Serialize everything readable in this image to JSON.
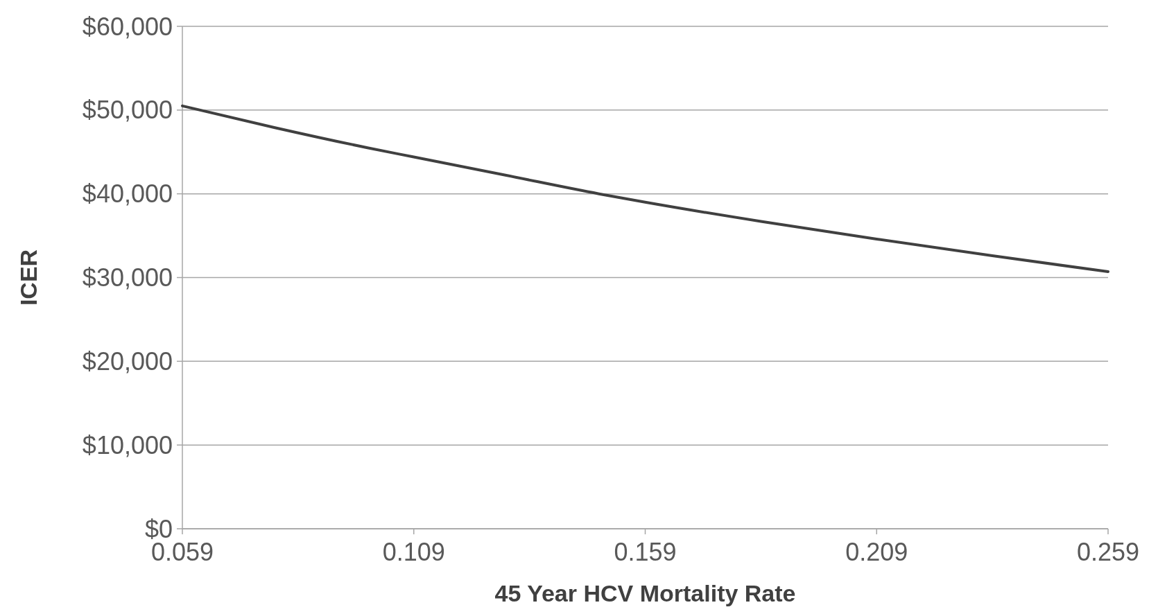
{
  "chart_data": {
    "type": "line",
    "xlabel": "45 Year HCV Mortality Rate",
    "ylabel": "ICER",
    "x": [
      0.059,
      0.079,
      0.099,
      0.109,
      0.129,
      0.149,
      0.159,
      0.184,
      0.209,
      0.234,
      0.259
    ],
    "series": [
      {
        "color": "#404040",
        "values": [
          50500,
          47900,
          45500,
          44400,
          42200,
          40000,
          39000,
          36700,
          34600,
          32600,
          30700
        ]
      }
    ],
    "xlim": [
      0.059,
      0.259
    ],
    "xticks": [
      0.059,
      0.109,
      0.159,
      0.209,
      0.259
    ],
    "ylim": [
      0,
      60000
    ],
    "yticks": [
      {
        "value": 0,
        "label": "$0"
      },
      {
        "value": 10000,
        "label": "$10,000"
      },
      {
        "value": 20000,
        "label": "$20,000"
      },
      {
        "value": 30000,
        "label": "$30,000"
      },
      {
        "value": 40000,
        "label": "$40,000"
      },
      {
        "value": 50000,
        "label": "$50,000"
      },
      {
        "value": 60000,
        "label": "$60,000"
      }
    ],
    "grid": "y",
    "marker": "none",
    "line_style": "solid"
  }
}
